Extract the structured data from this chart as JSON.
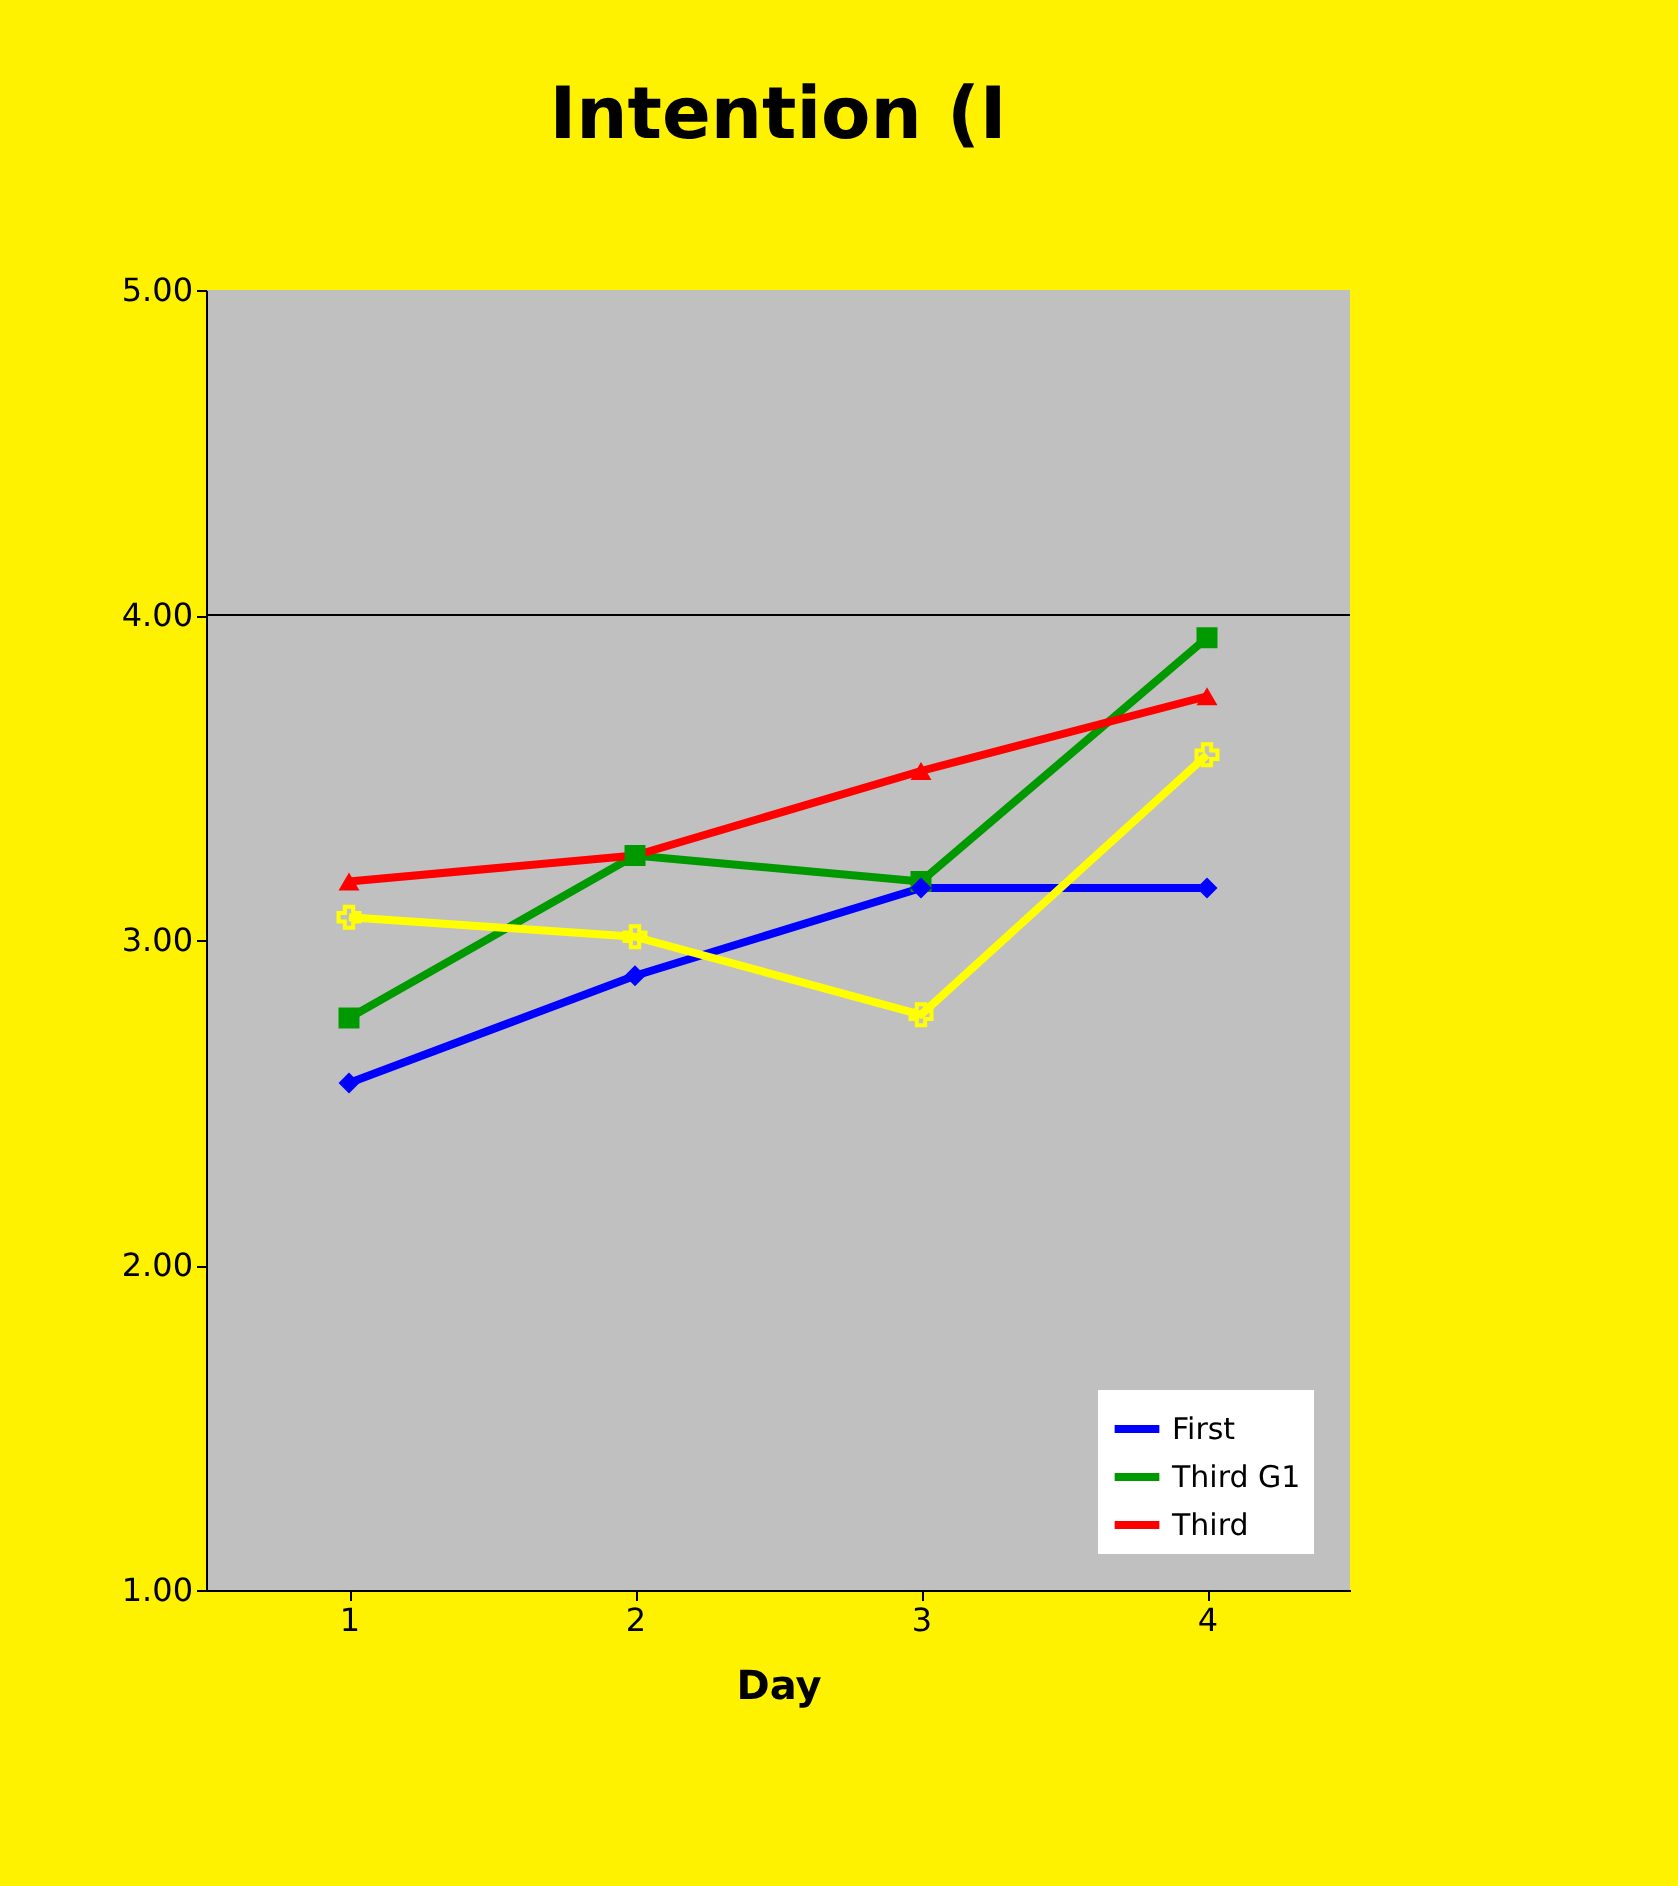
{
  "chart_data": {
    "type": "line",
    "title": "Intention (I",
    "xlabel": "Day",
    "categories": [
      "1",
      "2",
      "3",
      "4"
    ],
    "series": [
      {
        "name": "First",
        "color": "#0000ff",
        "marker": "diamond",
        "values": [
          2.56,
          2.89,
          3.16,
          3.16
        ]
      },
      {
        "name": "Third G1",
        "color": "#009900",
        "marker": "square",
        "values": [
          2.76,
          3.26,
          3.18,
          3.93
        ]
      },
      {
        "name": "Third",
        "color": "#ff0000",
        "marker": "triangle",
        "values": [
          3.18,
          3.26,
          3.52,
          3.75
        ]
      },
      {
        "color": "#ffff00",
        "marker": "cross",
        "values": [
          3.07,
          3.01,
          2.77,
          3.57
        ]
      }
    ],
    "ylim": [
      1,
      5
    ],
    "yticks": [
      {
        "value": 1,
        "label": "1.00"
      },
      {
        "value": 2,
        "label": "2.00"
      },
      {
        "value": 3,
        "label": "3.00"
      },
      {
        "value": 4,
        "label": "4.00"
      },
      {
        "value": 5,
        "label": "5.00"
      }
    ],
    "ref_lines": [
      {
        "axis": "y",
        "value": 4,
        "color": "#000000"
      }
    ],
    "legend": "bottom right",
    "line_style": "solid"
  }
}
